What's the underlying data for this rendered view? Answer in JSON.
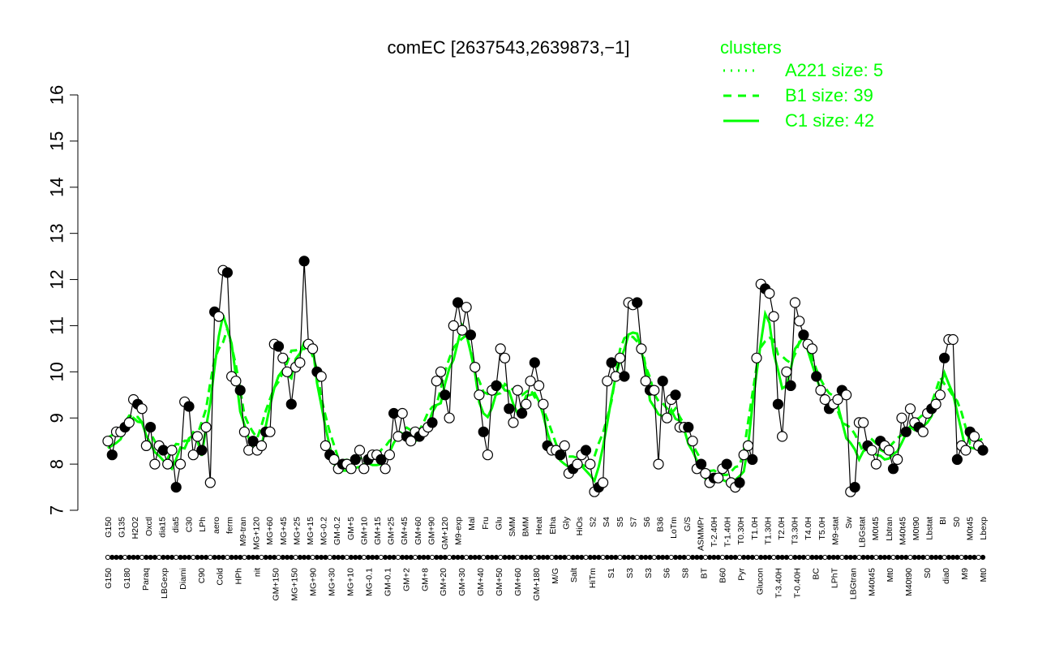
{
  "chart_data": {
    "type": "line",
    "title": "comEC [2637543,2639873,−1]",
    "xlabel": "",
    "ylabel": "",
    "ylim": [
      7,
      16
    ],
    "yticks": [
      7,
      8,
      9,
      10,
      11,
      12,
      13,
      14,
      15,
      16
    ],
    "grid": false,
    "colors": {
      "clusters": "#00ff00",
      "points": "#000000",
      "axis": "#000000"
    },
    "legend": {
      "title": "clusters",
      "placement": "top-right",
      "items": [
        {
          "label": "A221 size: 5",
          "style": "dotted"
        },
        {
          "label": "B1 size: 39",
          "style": "dashed"
        },
        {
          "label": "C1 size: 42",
          "style": "solid"
        }
      ]
    },
    "labels_top": [
      "G150",
      "G135",
      "H2O2",
      "Oxctl",
      "dia15",
      "dia5",
      "C30",
      "LPh",
      "aero",
      "ferm",
      "M9-tran",
      "MG+120",
      "MG+60",
      "MG+45",
      "MG+25",
      "MG+15",
      "MG-0.2",
      "GM-0.2",
      "GM+5",
      "GM+10",
      "GM+15",
      "GM+25",
      "GM+45",
      "GM+60",
      "GM+90",
      "GM+120",
      "M9-exp",
      "Mal",
      "Fru",
      "Glu",
      "SMM",
      "BMM",
      "Heat",
      "Etha",
      "Gly",
      "HiOs",
      "S2",
      "S4",
      "S5",
      "S7",
      "S6",
      "B36",
      "LoTm",
      "G/S",
      "ASMMPr",
      "T-2.40H",
      "T-1.40H",
      "T0.30H",
      "T1.0H",
      "T1.30H",
      "T2.0H",
      "T3.30H",
      "T4.0H",
      "T5.0H",
      "M9-stat",
      "Sw",
      "LBGstat",
      "M0t45",
      "Lbtran",
      "M40t45",
      "M0t90",
      "Lbstat",
      "BI",
      "S0",
      "M0t45",
      "Lbexp"
    ],
    "labels_bottom": [
      "G150",
      "G180",
      "Paraq",
      "LBGexp",
      "Diami",
      "C90",
      "Cold",
      "HPh",
      "nit",
      "GM+150",
      "MG+150",
      "MG+90",
      "MG+30",
      "MG+10",
      "MG-0.1",
      "GM-0.1",
      "GM+2",
      "GM+8",
      "GM+20",
      "GM+30",
      "GM+40",
      "GM+50",
      "GM+60",
      "GM+180",
      "M/G",
      "Salt",
      "HiTm",
      "S1",
      "S3",
      "S3",
      "S6",
      "S8",
      "BT",
      "B60",
      "Pyr",
      "Glucon",
      "T-3.40H",
      "T-0.40H",
      "BC",
      "LPhT",
      "LBGtran",
      "M40t45",
      "Mt0",
      "M40t90",
      "S0",
      "dia0",
      "M9",
      "Mt0"
    ],
    "series": [
      {
        "name": "",
        "values": [
          8.5,
          8.2,
          8.7,
          8.7,
          8.8,
          8.9,
          9.4,
          9.3,
          9.2,
          8.4,
          8.8,
          8.0,
          8.4,
          8.3,
          8.0,
          8.3,
          7.5,
          8.0,
          9.35,
          9.25,
          8.2,
          8.6,
          8.3,
          8.8,
          7.6,
          11.3,
          11.2,
          12.2,
          12.15,
          9.9,
          9.8,
          9.6,
          8.7,
          8.3,
          8.5,
          8.3,
          8.4,
          8.7,
          8.7,
          10.6,
          10.55,
          10.3,
          10.0,
          9.3,
          10.1,
          10.2,
          12.4,
          10.6,
          10.5,
          10.0,
          9.9,
          8.4,
          8.2,
          8.1,
          7.9,
          8.0,
          8.0,
          7.9,
          8.1,
          8.3,
          7.9,
          8.1,
          8.2,
          8.2,
          8.1,
          7.9,
          8.2,
          9.1,
          8.6,
          9.1,
          8.6,
          8.5,
          8.7,
          8.6,
          8.7,
          8.8,
          8.9,
          9.8,
          10.0,
          9.5,
          9.0,
          11.0,
          11.5,
          10.9,
          11.4,
          10.8,
          10.1,
          9.5,
          8.7,
          8.2,
          9.6,
          9.7,
          10.5,
          10.3,
          9.2,
          8.9,
          9.6,
          9.1,
          9.3,
          9.8,
          10.2,
          9.7,
          9.3,
          8.4,
          8.3,
          8.3,
          8.2,
          8.4,
          7.8,
          7.9,
          8.0,
          8.2,
          8.3,
          8.0,
          7.4,
          7.5,
          7.6,
          9.8,
          10.2,
          9.9,
          10.3,
          9.9,
          11.5,
          11.45,
          11.5,
          10.5,
          9.8,
          9.6,
          9.6,
          8.0,
          9.8,
          9.0,
          9.4,
          9.5,
          8.8,
          8.8,
          8.8,
          8.5,
          7.9,
          8.0,
          7.8,
          7.6,
          7.7,
          7.7,
          7.9,
          8.0,
          7.6,
          7.5,
          7.6,
          8.2,
          8.4,
          8.1,
          10.3,
          11.9,
          11.8,
          11.7,
          11.2,
          9.3,
          8.6,
          10.0,
          9.7,
          11.5,
          11.1,
          10.8,
          10.6,
          10.5,
          9.9,
          9.6,
          9.4,
          9.2,
          9.3,
          9.4,
          9.6,
          9.5,
          7.4,
          7.5,
          8.9,
          8.9,
          8.4,
          8.3,
          8.0,
          8.5,
          8.4,
          8.3,
          7.9,
          8.1,
          9.0,
          8.7,
          9.2,
          8.9,
          8.8,
          8.7,
          9.1,
          9.2,
          9.3,
          9.5,
          10.3,
          10.7,
          10.7,
          8.1,
          8.4,
          8.3,
          8.7,
          8.6,
          8.4,
          8.3
        ]
      }
    ]
  }
}
